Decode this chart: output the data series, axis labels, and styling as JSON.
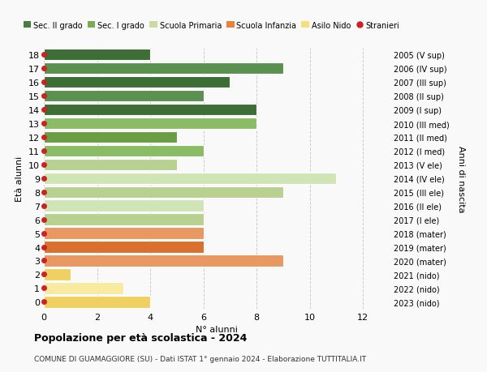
{
  "ages": [
    0,
    1,
    2,
    3,
    4,
    5,
    6,
    7,
    8,
    9,
    10,
    11,
    12,
    13,
    14,
    15,
    16,
    17,
    18
  ],
  "right_labels": [
    "2023 (nido)",
    "2022 (nido)",
    "2021 (nido)",
    "2020 (mater)",
    "2019 (mater)",
    "2018 (mater)",
    "2017 (I ele)",
    "2016 (II ele)",
    "2015 (III ele)",
    "2014 (IV ele)",
    "2013 (V ele)",
    "2012 (I med)",
    "2011 (II med)",
    "2010 (III med)",
    "2009 (I sup)",
    "2008 (II sup)",
    "2007 (III sup)",
    "2006 (IV sup)",
    "2005 (V sup)"
  ],
  "values": [
    4,
    3,
    1,
    9,
    6,
    6,
    6,
    6,
    9,
    11,
    5,
    6,
    5,
    8,
    8,
    6,
    7,
    9,
    4
  ],
  "colors_even": [
    "#f0d060",
    "#f0d060",
    "#f0d060",
    "#d97030",
    "#d97030",
    "#d97030",
    "#b8d090",
    "#b8d090",
    "#b8d090",
    "#b8d090",
    "#b8d090",
    "#6a9e45",
    "#6a9e45",
    "#6a9e45",
    "#3d6e35",
    "#3d6e35",
    "#3d6e35",
    "#3d6e35",
    "#3d6e35"
  ],
  "colors_odd": [
    "#f8eaa0",
    "#f8eaa0",
    "#f8eaa0",
    "#e89860",
    "#e89860",
    "#e89860",
    "#d0e5b5",
    "#d0e5b5",
    "#d0e5b5",
    "#d0e5b5",
    "#d0e5b5",
    "#8abb65",
    "#8abb65",
    "#8abb65",
    "#5a9050",
    "#5a9050",
    "#5a9050",
    "#5a9050",
    "#5a9050"
  ],
  "legend_labels": [
    "Sec. II grado",
    "Sec. I grado",
    "Scuola Primaria",
    "Scuola Infanzia",
    "Asilo Nido",
    "Stranieri"
  ],
  "legend_colors": [
    "#4a7c3f",
    "#7aab52",
    "#c8dba0",
    "#e8833a",
    "#f5e07a",
    "#cc2222"
  ],
  "title": "Popolazione per età scolastica - 2024",
  "subtitle": "COMUNE DI GUAMAGGIORE (SU) - Dati ISTAT 1° gennaio 2024 - Elaborazione TUTTITALIA.IT",
  "ylabel": "Età alunni",
  "xlabel": "N° alunni",
  "right_ylabel": "Anni di nascita",
  "xlim": [
    0,
    13
  ],
  "xticks": [
    0,
    2,
    4,
    6,
    8,
    10,
    12
  ],
  "background_color": "#f9f9f9",
  "bar_height": 0.85,
  "stranieri_dot_color": "#cc2222"
}
